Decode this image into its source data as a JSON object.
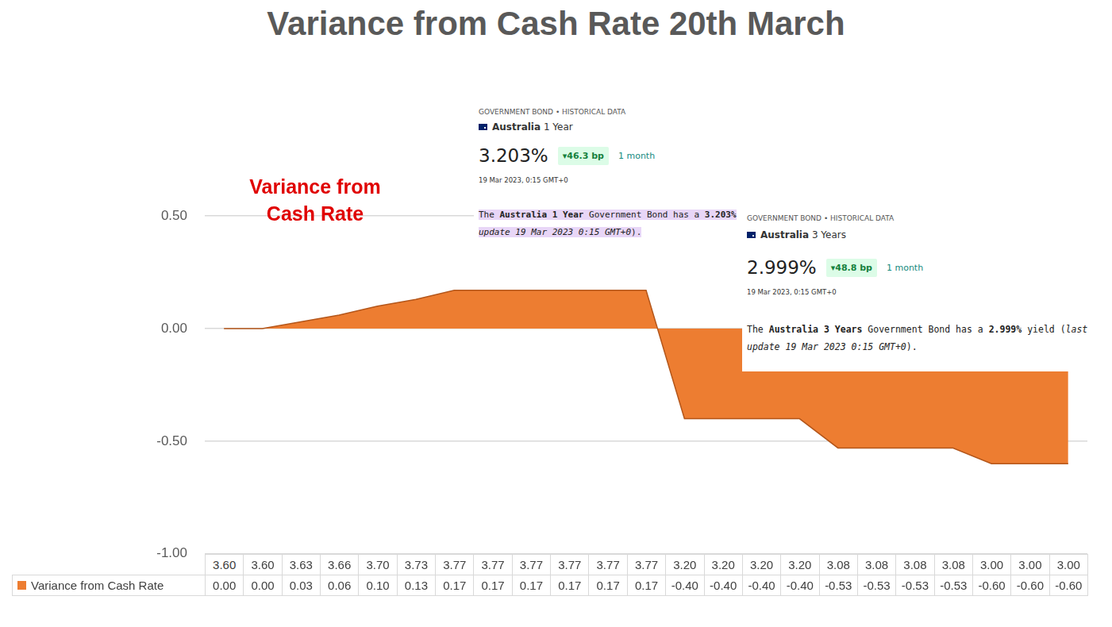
{
  "chart_data": {
    "type": "area",
    "title": "Variance from Cash Rate 20th March",
    "annotations": [
      "Variance from Cash Rate"
    ],
    "categories": [
      "3.60",
      "3.60",
      "3.63",
      "3.66",
      "3.70",
      "3.73",
      "3.77",
      "3.77",
      "3.77",
      "3.77",
      "3.77",
      "3.77",
      "3.20",
      "3.20",
      "3.20",
      "3.20",
      "3.08",
      "3.08",
      "3.08",
      "3.08",
      "3.00",
      "3.00",
      "3.00"
    ],
    "series": [
      {
        "name": "Variance from Cash Rate",
        "color": "#ed7d31",
        "values": [
          0,
          0,
          0.03,
          0.06,
          0.1,
          0.13,
          0.17,
          0.17,
          0.17,
          0.17,
          0.17,
          0.17,
          -0.4,
          -0.4,
          -0.4,
          -0.4,
          -0.53,
          -0.53,
          -0.53,
          -0.53,
          -0.6,
          -0.6,
          -0.6
        ],
        "value_labels": [
          "0.00",
          "0.00",
          "0.03",
          "0.06",
          "0.10",
          "0.13",
          "0.17",
          "0.17",
          "0.17",
          "0.17",
          "0.17",
          "0.17",
          "-0.40",
          "-0.40",
          "-0.40",
          "-0.40",
          "-0.53",
          "-0.53",
          "-0.53",
          "-0.53",
          "-0.60",
          "-0.60",
          "-0.60"
        ]
      }
    ],
    "ylim": [
      -1,
      0.5
    ],
    "yticks": [
      {
        "value": -1,
        "label": "-1.00"
      },
      {
        "value": -0.5,
        "label": "-0.50"
      },
      {
        "value": 0,
        "label": "0.00"
      },
      {
        "value": 0.5,
        "label": "0.50"
      }
    ],
    "grid": true
  },
  "panels": [
    {
      "header": "GOVERNMENT BOND • HISTORICAL DATA",
      "country": "Australia",
      "term": "1 Year",
      "yield": "3.203%",
      "change": "46.3 bp",
      "period": "1 month",
      "timestamp": "19 Mar 2023, 0:15 GMT+0",
      "description": [
        [
          {
            "text": "The ",
            "style": "plain"
          },
          {
            "text": "Australia 1 Year",
            "style": "bold"
          },
          {
            "text": " Government Bond has a ",
            "style": "plain"
          },
          {
            "text": "3.203%",
            "style": "bold"
          }
        ],
        [
          {
            "text": "update 19 Mar 2023 0:15 GMT+0",
            "style": "italic"
          },
          {
            "text": ").",
            "style": "plain"
          }
        ]
      ]
    },
    {
      "header": "GOVERNMENT BOND • HISTORICAL DATA",
      "country": "Australia",
      "term": "3 Years",
      "yield": "2.999%",
      "change": "48.8 bp",
      "period": "1 month",
      "timestamp": "19 Mar 2023, 0:15 GMT+0",
      "description": [
        [
          {
            "text": "The ",
            "style": "plain"
          },
          {
            "text": "Australia 3 Years",
            "style": "bold"
          },
          {
            "text": " Government Bond has a ",
            "style": "plain"
          },
          {
            "text": "2.999%",
            "style": "bold"
          },
          {
            "text": " yield (",
            "style": "plain"
          },
          {
            "text": "last update 19 Mar 2023 0:15 GMT+0",
            "style": "italic"
          },
          {
            "text": ").",
            "style": "plain"
          }
        ]
      ]
    }
  ]
}
